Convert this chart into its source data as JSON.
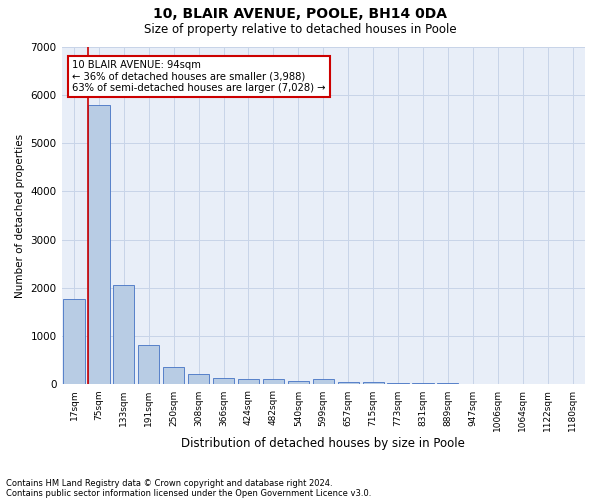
{
  "title_line1": "10, BLAIR AVENUE, POOLE, BH14 0DA",
  "title_line2": "Size of property relative to detached houses in Poole",
  "xlabel": "Distribution of detached houses by size in Poole",
  "ylabel": "Number of detached properties",
  "categories": [
    "17sqm",
    "75sqm",
    "133sqm",
    "191sqm",
    "250sqm",
    "308sqm",
    "366sqm",
    "424sqm",
    "482sqm",
    "540sqm",
    "599sqm",
    "657sqm",
    "715sqm",
    "773sqm",
    "831sqm",
    "889sqm",
    "947sqm",
    "1006sqm",
    "1064sqm",
    "1122sqm",
    "1180sqm"
  ],
  "values": [
    1780,
    5780,
    2060,
    820,
    370,
    210,
    130,
    110,
    110,
    75,
    110,
    50,
    50,
    30,
    20,
    20,
    15,
    10,
    10,
    5,
    5
  ],
  "bar_color": "#b8cce4",
  "bar_edgecolor": "#4472c4",
  "vline_color": "#cc0000",
  "vline_x_index": 1,
  "annotation_title": "10 BLAIR AVENUE: 94sqm",
  "annotation_line2": "← 36% of detached houses are smaller (3,988)",
  "annotation_line3": "63% of semi-detached houses are larger (7,028) →",
  "annotation_box_edgecolor": "#cc0000",
  "ylim": [
    0,
    7000
  ],
  "yticks": [
    0,
    1000,
    2000,
    3000,
    4000,
    5000,
    6000,
    7000
  ],
  "grid_color": "#c8d4e8",
  "bg_color": "#e8eef8",
  "footnote1": "Contains HM Land Registry data © Crown copyright and database right 2024.",
  "footnote2": "Contains public sector information licensed under the Open Government Licence v3.0."
}
